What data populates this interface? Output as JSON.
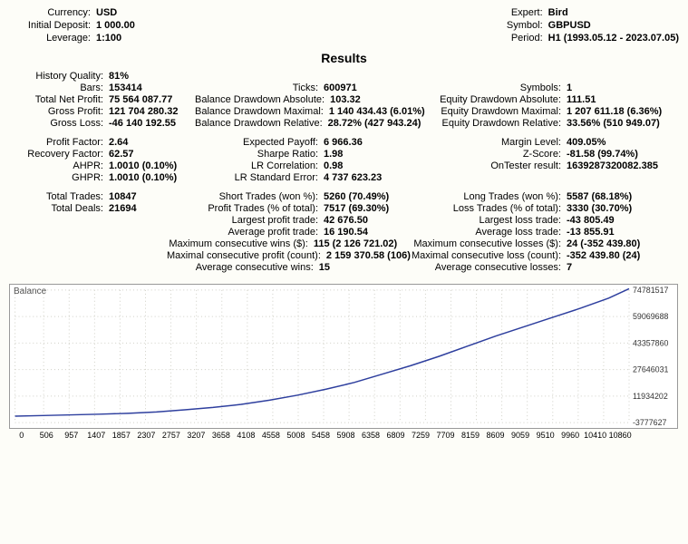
{
  "header": {
    "left": [
      {
        "label": "Currency:",
        "value": "USD"
      },
      {
        "label": "Initial Deposit:",
        "value": "1 000.00"
      },
      {
        "label": "Leverage:",
        "value": "1:100"
      }
    ],
    "right": [
      {
        "label": "Expert:",
        "value": "Bird"
      },
      {
        "label": "Symbol:",
        "value": "GBPUSD"
      },
      {
        "label": "Period:",
        "value": "H1 (1993.05.12 - 2023.07.05)"
      }
    ]
  },
  "results_title": "Results",
  "blocks": [
    [
      {
        "a": [
          "History Quality:",
          "81%"
        ],
        "b": [
          "",
          ""
        ],
        "c": [
          "",
          ""
        ]
      },
      {
        "a": [
          "Bars:",
          "153414"
        ],
        "b": [
          "Ticks:",
          "600971"
        ],
        "c": [
          "Symbols:",
          "1"
        ]
      },
      {
        "a": [
          "Total Net Profit:",
          "75 564 087.77"
        ],
        "b": [
          "Balance Drawdown Absolute:",
          "103.32"
        ],
        "c": [
          "Equity Drawdown Absolute:",
          "111.51"
        ]
      },
      {
        "a": [
          "Gross Profit:",
          "121 704 280.32"
        ],
        "b": [
          "Balance Drawdown Maximal:",
          "1 140 434.43 (6.01%)"
        ],
        "c": [
          "Equity Drawdown Maximal:",
          "1 207 611.18 (6.36%)"
        ]
      },
      {
        "a": [
          "Gross Loss:",
          "-46 140 192.55"
        ],
        "b": [
          "Balance Drawdown Relative:",
          "28.72% (427 943.24)"
        ],
        "c": [
          "Equity Drawdown Relative:",
          "33.56% (510 949.07)"
        ]
      }
    ],
    [
      {
        "a": [
          "Profit Factor:",
          "2.64"
        ],
        "b": [
          "Expected Payoff:",
          "6 966.36"
        ],
        "c": [
          "Margin Level:",
          "409.05%"
        ]
      },
      {
        "a": [
          "Recovery Factor:",
          "62.57"
        ],
        "b": [
          "Sharpe Ratio:",
          "1.98"
        ],
        "c": [
          "Z-Score:",
          "-81.58 (99.74%)"
        ]
      },
      {
        "a": [
          "AHPR:",
          "1.0010 (0.10%)"
        ],
        "b": [
          "LR Correlation:",
          "0.98"
        ],
        "c": [
          "OnTester result:",
          "1639287320082.385"
        ]
      },
      {
        "a": [
          "GHPR:",
          "1.0010 (0.10%)"
        ],
        "b": [
          "LR Standard Error:",
          "4 737 623.23"
        ],
        "c": [
          "",
          ""
        ]
      }
    ],
    [
      {
        "a": [
          "Total Trades:",
          "10847"
        ],
        "b": [
          "Short Trades (won %):",
          "5260 (70.49%)"
        ],
        "c": [
          "Long Trades (won %):",
          "5587 (68.18%)"
        ]
      },
      {
        "a": [
          "Total Deals:",
          "21694"
        ],
        "b": [
          "Profit Trades (% of total):",
          "7517 (69.30%)"
        ],
        "c": [
          "Loss Trades (% of total):",
          "3330 (30.70%)"
        ]
      },
      {
        "a": [
          "",
          ""
        ],
        "b": [
          "Largest profit trade:",
          "42 676.50"
        ],
        "c": [
          "Largest loss trade:",
          "-43 805.49"
        ]
      },
      {
        "a": [
          "",
          ""
        ],
        "b": [
          "Average profit trade:",
          "16 190.54"
        ],
        "c": [
          "Average loss trade:",
          "-13 855.91"
        ]
      },
      {
        "a": [
          "",
          ""
        ],
        "b": [
          "Maximum consecutive wins ($):",
          "115 (2 126 721.02)"
        ],
        "c": [
          "Maximum consecutive losses ($):",
          "24 (-352 439.80)"
        ]
      },
      {
        "a": [
          "",
          ""
        ],
        "b": [
          "Maximal consecutive profit (count):",
          "2 159 370.58 (106)"
        ],
        "c": [
          "Maximal consecutive loss (count):",
          "-352 439.80 (24)"
        ]
      },
      {
        "a": [
          "",
          ""
        ],
        "b": [
          "Average consecutive wins:",
          "15"
        ],
        "c": [
          "Average consecutive losses:",
          "7"
        ]
      }
    ]
  ],
  "chart": {
    "title": "Balance",
    "type": "line",
    "line_color": "#2e3f9e",
    "grid_color": "#cfcfc6",
    "background": "#ffffff",
    "border_color": "#999999",
    "xticks": [
      "0",
      "506",
      "957",
      "1407",
      "1857",
      "2307",
      "2757",
      "3207",
      "3658",
      "4108",
      "4558",
      "5008",
      "5458",
      "5908",
      "6358",
      "6809",
      "7259",
      "7709",
      "8159",
      "8609",
      "9059",
      "9510",
      "9960",
      "10410",
      "10860"
    ],
    "ylabels": [
      "74781517",
      "59069688",
      "43357860",
      "27646031",
      "11934202",
      "-3777627"
    ],
    "xlim": [
      0,
      10860
    ],
    "ylim": [
      -3777627,
      74781517
    ],
    "points": [
      [
        0,
        1000
      ],
      [
        500,
        400000
      ],
      [
        1000,
        800000
      ],
      [
        1500,
        1200000
      ],
      [
        2000,
        1700000
      ],
      [
        2500,
        2500000
      ],
      [
        3000,
        3800000
      ],
      [
        3500,
        5200000
      ],
      [
        4000,
        7000000
      ],
      [
        4500,
        9500000
      ],
      [
        5000,
        12500000
      ],
      [
        5500,
        16000000
      ],
      [
        6000,
        20000000
      ],
      [
        6500,
        25000000
      ],
      [
        7000,
        30000000
      ],
      [
        7500,
        35500000
      ],
      [
        8000,
        41500000
      ],
      [
        8500,
        47500000
      ],
      [
        9000,
        53000000
      ],
      [
        9500,
        58500000
      ],
      [
        10000,
        64000000
      ],
      [
        10500,
        70000000
      ],
      [
        10860,
        75564087
      ]
    ]
  }
}
